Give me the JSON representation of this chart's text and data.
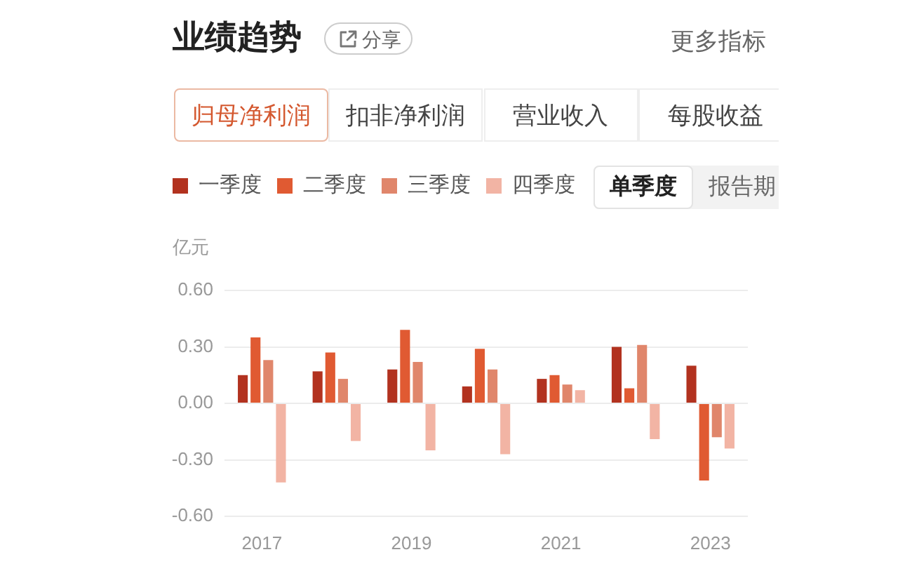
{
  "chart_data": {
    "type": "bar",
    "title": "业绩趋势",
    "subtitle": "归母净利润",
    "ylabel": "亿元",
    "annotations": [
      "分享",
      "更多指标",
      "扣非净利润",
      "营业收入",
      "每股收益",
      "单季度",
      "报告期"
    ],
    "categories": [
      "2017",
      null,
      "2019",
      null,
      "2021",
      null,
      "2023"
    ],
    "series": [
      {
        "name": "一季度",
        "color": "#b2321f",
        "values": [
          0.15,
          0.17,
          0.18,
          0.09,
          0.13,
          0.3,
          0.2
        ]
      },
      {
        "name": "二季度",
        "color": "#e05a32",
        "values": [
          0.35,
          0.27,
          0.39,
          0.29,
          0.15,
          0.08,
          -0.41
        ]
      },
      {
        "name": "三季度",
        "color": "#e0866b",
        "values": [
          0.23,
          0.13,
          0.22,
          0.18,
          0.1,
          0.31,
          -0.18
        ]
      },
      {
        "name": "四季度",
        "color": "#f2b4a4",
        "values": [
          -0.42,
          -0.2,
          -0.25,
          -0.27,
          0.07,
          -0.19,
          -0.24
        ]
      }
    ],
    "ylim": [
      -0.6,
      0.6
    ],
    "yticks": [
      {
        "value": 0.6,
        "label": "0.60"
      },
      {
        "value": 0.3,
        "label": "0.30"
      },
      {
        "value": 0,
        "label": "0.00"
      },
      {
        "value": -0.3,
        "label": "-0.30"
      },
      {
        "value": -0.6,
        "label": "-0.60"
      }
    ],
    "grid": "y",
    "legend": "top left"
  }
}
